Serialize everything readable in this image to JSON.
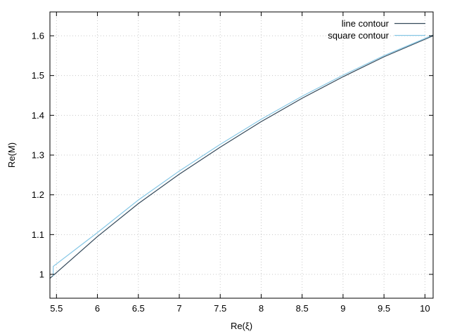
{
  "chart_data": {
    "type": "line",
    "title": "",
    "xlabel": "Re(ξ)",
    "ylabel": "Re(M)",
    "xlim": [
      5.42,
      10.1
    ],
    "ylim": [
      0.94,
      1.66
    ],
    "xticks": [
      5.5,
      6,
      6.5,
      7,
      7.5,
      8,
      8.5,
      9,
      9.5,
      10
    ],
    "xtick_labels": [
      "5.5",
      "6",
      "6.5",
      "7",
      "7.5",
      "8",
      "8.5",
      "9",
      "9.5",
      "10"
    ],
    "yticks": [
      1,
      1.1,
      1.2,
      1.3,
      1.4,
      1.5,
      1.6
    ],
    "ytick_labels": [
      "1",
      "1.1",
      "1.2",
      "1.3",
      "1.4",
      "1.5",
      "1.6"
    ],
    "grid": true,
    "legend_position": "top-right",
    "series": [
      {
        "name": "line contour",
        "color": "#34495a",
        "x": [
          5.42,
          6.0,
          6.5,
          7.0,
          7.5,
          8.0,
          8.5,
          9.0,
          9.5,
          10.1
        ],
        "y": [
          0.99,
          1.095,
          1.178,
          1.252,
          1.32,
          1.384,
          1.443,
          1.497,
          1.547,
          1.6
        ]
      },
      {
        "name": "square contour",
        "color": "#87c8e6",
        "x": [
          5.46,
          5.46,
          6.0,
          6.5,
          7.0,
          7.5,
          8.0,
          8.5,
          9.0,
          9.5,
          10.1
        ],
        "y": [
          0.995,
          1.02,
          1.105,
          1.187,
          1.26,
          1.327,
          1.39,
          1.448,
          1.501,
          1.55,
          1.602
        ]
      }
    ]
  }
}
